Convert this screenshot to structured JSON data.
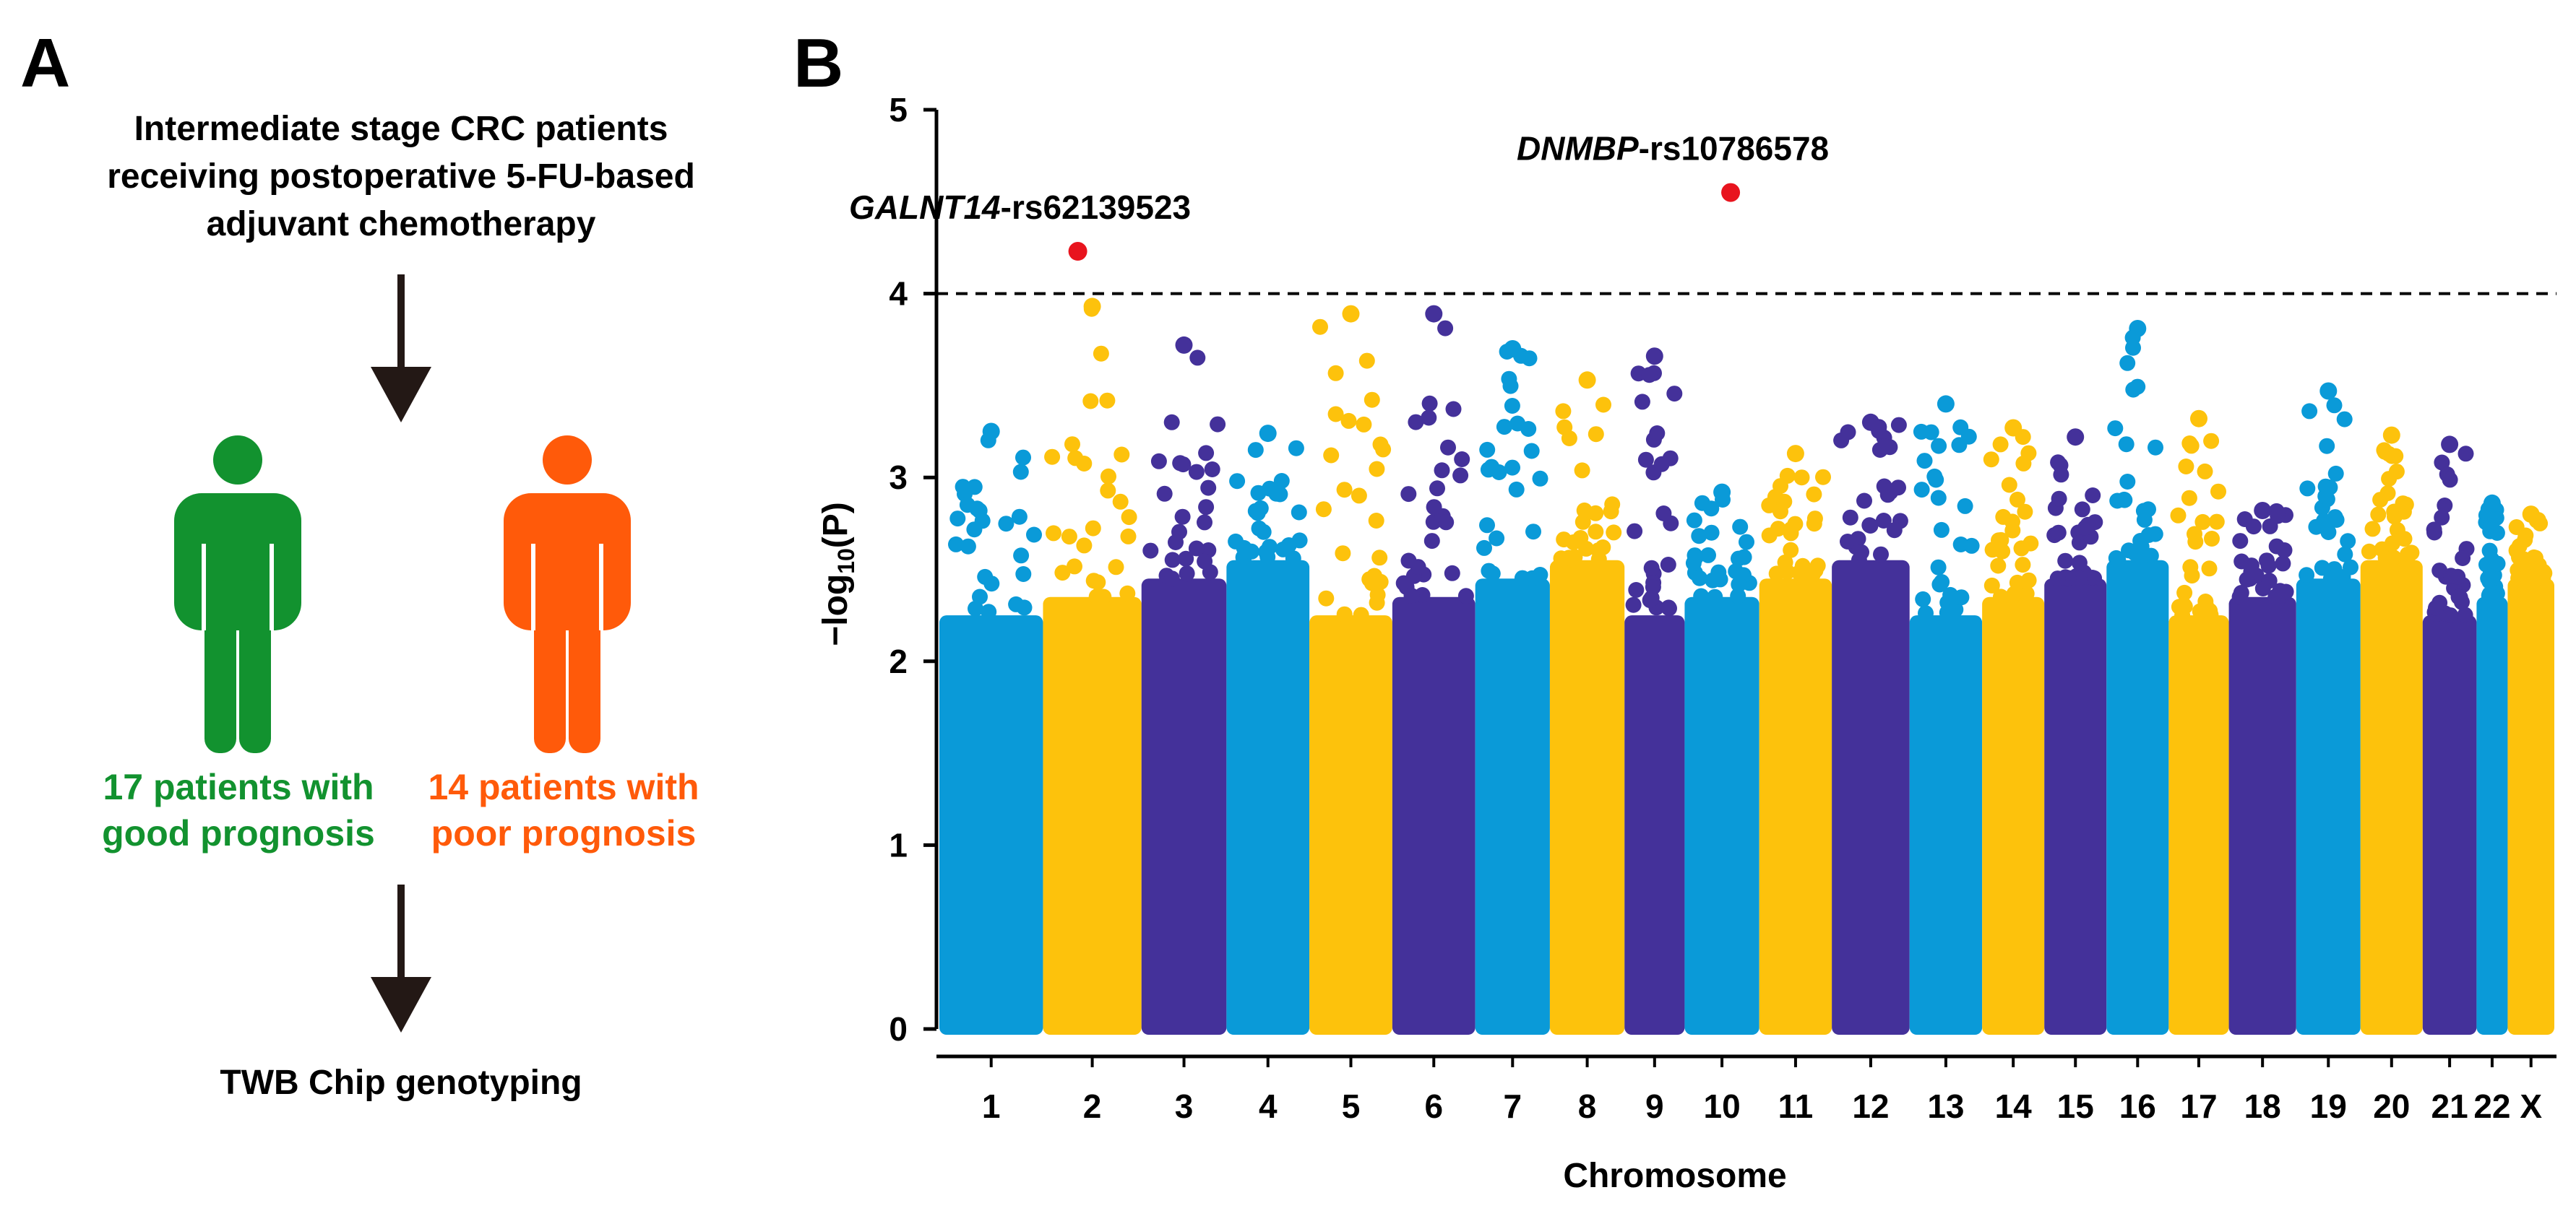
{
  "panels": {
    "a": "A",
    "b": "B"
  },
  "flowchart": {
    "title_lines": [
      "Intermediate stage CRC patients",
      "receiving postoperative 5-FU-based",
      "adjuvant chemotherapy"
    ],
    "groups": [
      {
        "lines": [
          "17 patients with",
          "good prognosis"
        ],
        "color": "#12922F"
      },
      {
        "lines": [
          "14 patients with",
          "poor prognosis"
        ],
        "color": "#FF5A0A"
      }
    ],
    "result": "TWB Chip genotyping",
    "arrow_color": "#231815"
  },
  "chart_data": {
    "type": "scatter",
    "subtype": "manhattan",
    "xlabel": "Chromosome",
    "ylabel_parts": [
      "−log",
      "10",
      "(P)"
    ],
    "ylim": [
      0,
      5
    ],
    "yticks": [
      0,
      1,
      2,
      3,
      4,
      5
    ],
    "significance_threshold": 4,
    "categories": [
      "1",
      "2",
      "3",
      "4",
      "5",
      "6",
      "7",
      "8",
      "9",
      "10",
      "11",
      "12",
      "13",
      "14",
      "15",
      "16",
      "17",
      "18",
      "19",
      "20",
      "21",
      "22",
      "X"
    ],
    "chromosome_colors": [
      "#0A9AD8",
      "#FDC20C",
      "#44319A"
    ],
    "max_values": [
      3.25,
      3.93,
      3.72,
      3.24,
      3.89,
      3.89,
      3.7,
      3.53,
      3.66,
      2.92,
      3.13,
      3.3,
      3.4,
      3.27,
      3.22,
      3.81,
      3.32,
      2.82,
      3.47,
      3.23,
      3.18,
      2.86,
      2.8
    ],
    "highlighted_snps": [
      {
        "gene": "GALNT14",
        "snp": "-rs62139523",
        "chromosome": "2",
        "value": 4.23,
        "color": "#E8141E"
      },
      {
        "gene": "DNMBP",
        "snp": "-rs10786578",
        "chromosome": "10",
        "value": 4.55,
        "color": "#E8141E"
      }
    ]
  }
}
